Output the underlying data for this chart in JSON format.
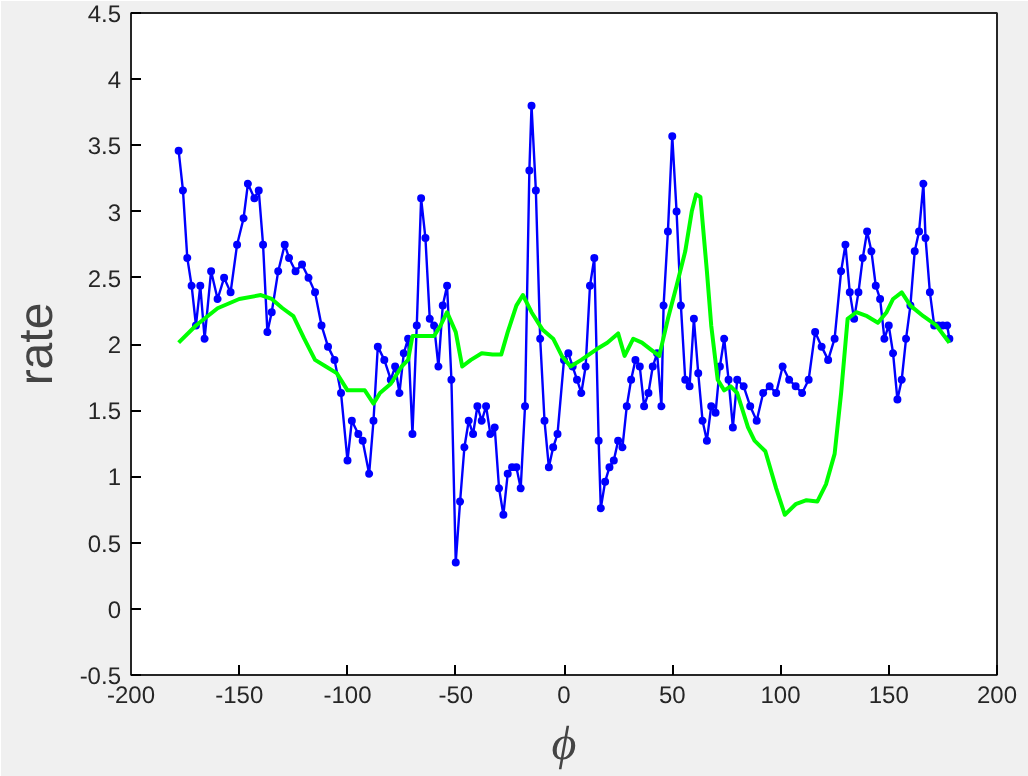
{
  "chart_data": {
    "type": "line",
    "xlabel": "ϕ",
    "ylabel": "rate",
    "xlim": [
      -200,
      200
    ],
    "xticks": [
      -200,
      -150,
      -100,
      -50,
      0,
      50,
      100,
      150,
      200
    ],
    "ylim": [
      -0.5,
      4.5
    ],
    "yticks": [
      -0.5,
      0,
      0.5,
      1,
      1.5,
      2,
      2.5,
      3,
      3.5,
      4,
      4.5
    ],
    "grid": false,
    "line_style": "solid",
    "series": [
      {
        "color": "#0000ff",
        "marker": "circle",
        "x": [
          -178,
          -176,
          -174,
          -172,
          -170,
          -168,
          -166,
          -163,
          -160,
          -157,
          -154,
          -151,
          -148,
          -146,
          -143,
          -141,
          -139,
          -137,
          -135,
          -132,
          -129,
          -127,
          -124,
          -121,
          -118,
          -115,
          -112,
          -109,
          -106,
          -103,
          -100,
          -98,
          -95,
          -93,
          -90,
          -88,
          -86,
          -83,
          -80,
          -78,
          -76,
          -74,
          -72,
          -70,
          -68,
          -66,
          -64,
          -62,
          -60,
          -58,
          -56,
          -54,
          -52,
          -50,
          -48,
          -46,
          -44,
          -42,
          -40,
          -38,
          -36,
          -34,
          -32,
          -30,
          -28,
          -26,
          -24,
          -22,
          -20,
          -18,
          -16,
          -15,
          -13,
          -11,
          -9,
          -7,
          -5,
          -3,
          0,
          2,
          4,
          6,
          8,
          10,
          12,
          14,
          16,
          17,
          19,
          21,
          23,
          25,
          27,
          29,
          31,
          33,
          35,
          37,
          39,
          41,
          43,
          45,
          46,
          48,
          50,
          52,
          54,
          56,
          58,
          60,
          62,
          64,
          66,
          68,
          70,
          72,
          74,
          76,
          78,
          80,
          83,
          86,
          89,
          92,
          95,
          98,
          101,
          104,
          107,
          110,
          113,
          116,
          119,
          122,
          125,
          128,
          130,
          132,
          134,
          136,
          138,
          140,
          142,
          144,
          146,
          148,
          150,
          152,
          154,
          156,
          158,
          160,
          162,
          164,
          166,
          167,
          169,
          171,
          173,
          175,
          177,
          178
        ],
        "values": [
          3.46,
          3.16,
          2.65,
          2.44,
          2.14,
          2.44,
          2.04,
          2.55,
          2.34,
          2.5,
          2.39,
          2.75,
          2.95,
          3.21,
          3.1,
          3.16,
          2.75,
          2.09,
          2.24,
          2.55,
          2.75,
          2.65,
          2.55,
          2.6,
          2.5,
          2.39,
          2.14,
          1.98,
          1.88,
          1.63,
          1.12,
          1.42,
          1.32,
          1.27,
          1.02,
          1.42,
          1.98,
          1.88,
          1.73,
          1.83,
          1.63,
          1.93,
          2.04,
          1.32,
          2.14,
          3.1,
          2.8,
          2.19,
          2.14,
          1.83,
          2.29,
          2.44,
          1.73,
          0.35,
          0.81,
          1.22,
          1.42,
          1.32,
          1.53,
          1.42,
          1.53,
          1.32,
          1.37,
          0.91,
          0.71,
          1.02,
          1.07,
          1.07,
          0.91,
          1.53,
          3.31,
          3.8,
          3.16,
          2.04,
          1.42,
          1.07,
          1.22,
          1.32,
          1.88,
          1.93,
          1.83,
          1.73,
          1.63,
          1.83,
          2.44,
          2.65,
          1.27,
          0.76,
          0.96,
          1.07,
          1.12,
          1.27,
          1.22,
          1.53,
          1.73,
          1.88,
          1.83,
          1.53,
          1.63,
          1.83,
          1.93,
          1.53,
          2.29,
          2.85,
          3.57,
          3.0,
          2.29,
          1.73,
          1.68,
          2.19,
          1.78,
          1.42,
          1.27,
          1.53,
          1.48,
          1.83,
          2.04,
          1.73,
          1.37,
          1.73,
          1.68,
          1.53,
          1.42,
          1.63,
          1.68,
          1.63,
          1.83,
          1.73,
          1.68,
          1.63,
          1.73,
          2.09,
          1.98,
          1.88,
          2.04,
          2.55,
          2.75,
          2.39,
          2.19,
          2.39,
          2.65,
          2.85,
          2.7,
          2.44,
          2.34,
          2.04,
          2.14,
          1.93,
          1.58,
          1.73,
          2.04,
          2.29,
          2.7,
          2.85,
          3.21,
          2.8,
          2.39,
          2.14,
          2.14,
          2.14,
          2.14,
          2.04
        ]
      },
      {
        "color": "#00ff00",
        "marker": "none",
        "x": [
          -178,
          -170,
          -160,
          -150,
          -140,
          -135,
          -130,
          -125,
          -120,
          -115,
          -110,
          -105,
          -100,
          -95,
          -92,
          -88,
          -85,
          -80,
          -75,
          -72,
          -70,
          -65,
          -60,
          -57,
          -54,
          -50,
          -47,
          -43,
          -38,
          -33,
          -29,
          -26,
          -22,
          -19,
          -15,
          -10,
          -5,
          -1,
          3,
          8,
          15,
          20,
          25,
          28,
          32,
          36,
          40,
          44,
          48,
          52,
          56,
          59,
          61,
          63,
          66,
          68,
          71,
          74,
          77,
          80,
          85,
          88,
          93,
          98,
          102,
          107,
          112,
          117,
          121,
          125,
          128,
          131,
          135,
          140,
          145,
          149,
          152,
          156,
          160,
          166,
          172,
          178
        ],
        "values": [
          2.01,
          2.14,
          2.27,
          2.34,
          2.37,
          2.34,
          2.27,
          2.21,
          2.04,
          1.88,
          1.83,
          1.78,
          1.65,
          1.65,
          1.65,
          1.55,
          1.63,
          1.7,
          1.83,
          1.88,
          2.06,
          2.06,
          2.06,
          2.14,
          2.24,
          2.09,
          1.83,
          1.88,
          1.93,
          1.92,
          1.92,
          2.09,
          2.29,
          2.37,
          2.24,
          2.11,
          2.04,
          1.91,
          1.83,
          1.88,
          1.96,
          2.01,
          2.08,
          1.91,
          2.04,
          2.01,
          1.96,
          1.91,
          2.19,
          2.44,
          2.7,
          3.0,
          3.13,
          3.11,
          2.55,
          2.14,
          1.73,
          1.65,
          1.68,
          1.63,
          1.37,
          1.27,
          1.19,
          0.91,
          0.71,
          0.79,
          0.82,
          0.81,
          0.94,
          1.17,
          1.63,
          2.19,
          2.24,
          2.21,
          2.16,
          2.24,
          2.34,
          2.39,
          2.29,
          2.21,
          2.14,
          2.01
        ]
      }
    ]
  }
}
